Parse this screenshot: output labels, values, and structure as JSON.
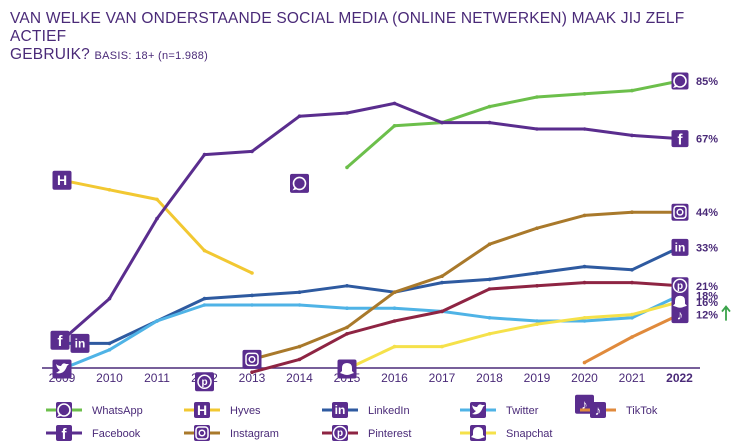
{
  "header": {
    "title_line1": "VAN WELKE VAN ONDERSTAANDE SOCIAL MEDIA (ONLINE NETWERKEN) MAAK JIJ ZELF ACTIEF",
    "title_line2": "GEBRUIK?",
    "basis": "BASIS: 18+ (n=1.988)"
  },
  "chart_data": {
    "type": "line",
    "title": "VAN WELKE VAN ONDERSTAANDE SOCIAL MEDIA (ONLINE NETWERKEN) MAAK JIJ ZELF ACTIEF GEBRUIK?",
    "subtitle": "BASIS: 18+ (n=1.988)",
    "xlabel": "",
    "ylabel": "",
    "x": [
      2009,
      2010,
      2011,
      2012,
      2013,
      2014,
      2015,
      2016,
      2017,
      2018,
      2019,
      2020,
      2021,
      2022
    ],
    "ylim": [
      0,
      100
    ],
    "grid": false,
    "legend_position": "bottom",
    "series": [
      {
        "name": "WhatsApp",
        "color": "#6cbf4b",
        "icon": "whatsapp-icon",
        "values": [
          null,
          null,
          null,
          null,
          null,
          null,
          58,
          71,
          72,
          77,
          80,
          81,
          82,
          85
        ],
        "marker_year": 2014,
        "marker_value": 53,
        "end_label": "85%"
      },
      {
        "name": "Hyves",
        "color": "#f2c832",
        "icon": "hyves-icon",
        "values": [
          54,
          51,
          48,
          32,
          25,
          null,
          null,
          null,
          null,
          null,
          null,
          null,
          null,
          null
        ],
        "marker_year": 2009,
        "marker_value": 54,
        "end_label": ""
      },
      {
        "name": "LinkedIn",
        "color": "#2e5aa0",
        "icon": "linkedin-icon",
        "values": [
          3,
          3,
          10,
          17,
          18,
          19,
          21,
          19,
          22,
          23,
          25,
          27,
          26,
          33
        ],
        "marker_year": 2009,
        "marker_value": 3,
        "end_label": "33%"
      },
      {
        "name": "Twitter",
        "color": "#4fb3e6",
        "icon": "twitter-icon",
        "values": [
          -5,
          1,
          10,
          15,
          15,
          15,
          14,
          14,
          13,
          11,
          10,
          10,
          11,
          18
        ],
        "marker_year": 2009,
        "marker_value": -5,
        "end_label": "18%"
      },
      {
        "name": "TikTok",
        "color": "#e08a3c",
        "icon": "tiktok-icon",
        "values": [
          null,
          null,
          null,
          null,
          null,
          null,
          null,
          null,
          null,
          null,
          null,
          -3,
          5,
          12
        ],
        "marker_year": 2020,
        "marker_value": -16,
        "end_label": "12%"
      },
      {
        "name": "Facebook",
        "color": "#5a2d8e",
        "icon": "facebook-icon",
        "values": [
          4,
          17,
          42,
          62,
          63,
          74,
          75,
          78,
          72,
          72,
          70,
          70,
          68,
          67
        ],
        "marker_year": 2009,
        "marker_value": 4,
        "end_label": "67%"
      },
      {
        "name": "Instagram",
        "color": "#a9792b",
        "icon": "instagram-icon",
        "values": [
          null,
          null,
          null,
          null,
          -2,
          2,
          8,
          19,
          24,
          34,
          39,
          43,
          44,
          44
        ],
        "marker_year": 2013,
        "marker_value": -2,
        "end_label": "44%"
      },
      {
        "name": "Pinterest",
        "color": "#8e2443",
        "icon": "pinterest-icon",
        "values": [
          null,
          null,
          null,
          null,
          -6,
          -2,
          6,
          10,
          13,
          20,
          21,
          22,
          22,
          21
        ],
        "marker_year": 2012,
        "marker_value": -9,
        "end_label": "21%"
      },
      {
        "name": "Snapchat",
        "color": "#f5e14a",
        "icon": "snapchat-icon",
        "values": [
          null,
          null,
          null,
          null,
          null,
          null,
          -5,
          2,
          2,
          6,
          9,
          11,
          12,
          16
        ],
        "marker_year": 2015,
        "marker_value": -5,
        "end_label": "16%"
      }
    ],
    "trend_annotation": "up-arrow next to TikTok 12%"
  },
  "legend": [
    {
      "label": "WhatsApp",
      "color": "#6cbf4b",
      "icon": "whatsapp-icon"
    },
    {
      "label": "Hyves",
      "color": "#f2c832",
      "icon": "hyves-icon"
    },
    {
      "label": "LinkedIn",
      "color": "#2e5aa0",
      "icon": "linkedin-icon"
    },
    {
      "label": "Twitter",
      "color": "#4fb3e6",
      "icon": "twitter-icon"
    },
    {
      "label": "TikTok",
      "color": "#e08a3c",
      "icon": "tiktok-icon"
    },
    {
      "label": "Facebook",
      "color": "#5a2d8e",
      "icon": "facebook-icon"
    },
    {
      "label": "Instagram",
      "color": "#a9792b",
      "icon": "instagram-icon"
    },
    {
      "label": "Pinterest",
      "color": "#8e2443",
      "icon": "pinterest-icon"
    },
    {
      "label": "Snapchat",
      "color": "#f5e14a",
      "icon": "snapchat-icon"
    }
  ],
  "colors": {
    "text": "#4a2a78",
    "icon_bg": "#5a2d8e",
    "arrow": "#3aa34a"
  }
}
